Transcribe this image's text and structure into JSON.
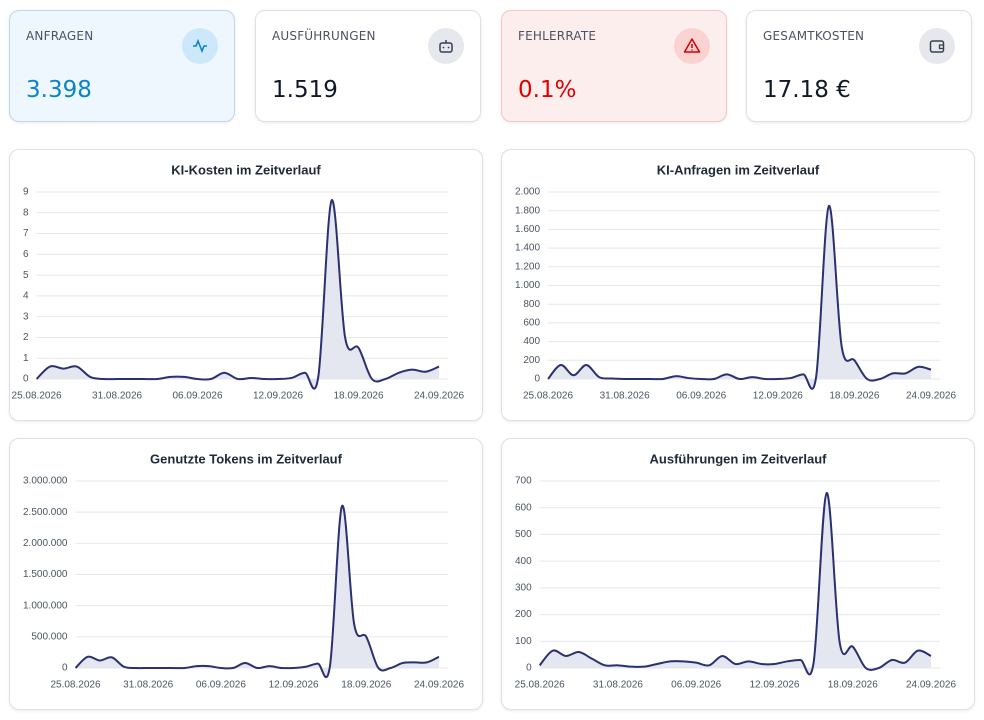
{
  "stats": [
    {
      "label": "ANFRAGEN",
      "value": "3.398"
    },
    {
      "label": "AUSFÜHRUNGEN",
      "value": "1.519"
    },
    {
      "label": "FEHLERRATE",
      "value": "0.1%"
    },
    {
      "label": "GESAMTKOSTEN",
      "value": "17.18 €"
    }
  ],
  "chart_data": [
    {
      "type": "line",
      "title": "KI-Kosten im Zeitverlauf",
      "categories": [
        "25.08.2026",
        null,
        null,
        null,
        null,
        null,
        "31.08.2026",
        null,
        null,
        null,
        null,
        null,
        "06.09.2026",
        null,
        null,
        null,
        null,
        null,
        "12.09.2026",
        null,
        null,
        null,
        null,
        null,
        "18.09.2026",
        null,
        null,
        null,
        null,
        null,
        "24.09.2026"
      ],
      "values": [
        0,
        0.6,
        0.5,
        0.6,
        0.1,
        0,
        0,
        0,
        0,
        0,
        0.1,
        0.1,
        0,
        0,
        0.3,
        0,
        0.05,
        0,
        0,
        0.05,
        0.3,
        0.1,
        8.6,
        2.0,
        1.5,
        0,
        0,
        0.3,
        0.45,
        0.35,
        0.6
      ],
      "ylim": [
        0,
        9
      ],
      "yticks": [
        0,
        1,
        2,
        3,
        4,
        5,
        6,
        7,
        8,
        9
      ],
      "grid": true,
      "color": "#2b3170",
      "area_color": "#e4e6f0"
    },
    {
      "type": "line",
      "title": "KI-Anfragen im Zeitverlauf",
      "categories": [
        "25.08.2026",
        null,
        null,
        null,
        null,
        null,
        "31.08.2026",
        null,
        null,
        null,
        null,
        null,
        "06.09.2026",
        null,
        null,
        null,
        null,
        null,
        "12.09.2026",
        null,
        null,
        null,
        null,
        null,
        "18.09.2026",
        null,
        null,
        null,
        null,
        null,
        "24.09.2026"
      ],
      "values": [
        0,
        150,
        40,
        150,
        20,
        5,
        0,
        0,
        0,
        0,
        30,
        10,
        0,
        0,
        50,
        0,
        20,
        0,
        0,
        10,
        50,
        20,
        1850,
        350,
        200,
        0,
        0,
        60,
        60,
        130,
        100
      ],
      "ylim": [
        0,
        2000
      ],
      "yticks": [
        0,
        200,
        400,
        600,
        800,
        {
          "value": 1000,
          "label": "1.000"
        },
        {
          "value": 1200,
          "label": "1.200"
        },
        {
          "value": 1400,
          "label": "1.400"
        },
        {
          "value": 1600,
          "label": "1.600"
        },
        {
          "value": 1800,
          "label": "1.800"
        },
        {
          "value": 2000,
          "label": "2.000"
        }
      ],
      "grid": true,
      "color": "#2b3170",
      "area_color": "#e4e6f0"
    },
    {
      "type": "line",
      "title": "Genutzte Tokens im Zeitverlauf",
      "categories": [
        "25.08.2026",
        null,
        null,
        null,
        null,
        null,
        "31.08.2026",
        null,
        null,
        null,
        null,
        null,
        "06.09.2026",
        null,
        null,
        null,
        null,
        null,
        "12.09.2026",
        null,
        null,
        null,
        null,
        null,
        "18.09.2026",
        null,
        null,
        null,
        null,
        null,
        "24.09.2026"
      ],
      "values": [
        0,
        180000,
        120000,
        170000,
        20000,
        0,
        0,
        0,
        0,
        0,
        30000,
        30000,
        0,
        0,
        80000,
        0,
        30000,
        0,
        0,
        20000,
        70000,
        30000,
        2600000,
        700000,
        500000,
        0,
        0,
        80000,
        90000,
        90000,
        180000
      ],
      "ylim": [
        0,
        3000000
      ],
      "yticks": [
        0,
        {
          "value": 500000,
          "label": "500.000"
        },
        {
          "value": 1000000,
          "label": "1.000.000"
        },
        {
          "value": 1500000,
          "label": "1.500.000"
        },
        {
          "value": 2000000,
          "label": "2.000.000"
        },
        {
          "value": 2500000,
          "label": "2.500.000"
        },
        {
          "value": 3000000,
          "label": "3.000.000"
        }
      ],
      "grid": true,
      "color": "#2b3170",
      "area_color": "#e4e6f0"
    },
    {
      "type": "line",
      "title": "Ausführungen im Zeitverlauf",
      "categories": [
        "25.08.2026",
        null,
        null,
        null,
        null,
        null,
        "31.08.2026",
        null,
        null,
        null,
        null,
        null,
        "06.09.2026",
        null,
        null,
        null,
        null,
        null,
        "12.09.2026",
        null,
        null,
        null,
        null,
        null,
        "18.09.2026",
        null,
        null,
        null,
        null,
        null,
        "24.09.2026"
      ],
      "values": [
        10,
        65,
        45,
        60,
        35,
        10,
        10,
        5,
        5,
        15,
        25,
        25,
        20,
        10,
        45,
        15,
        25,
        15,
        15,
        25,
        30,
        20,
        655,
        95,
        80,
        0,
        0,
        30,
        20,
        65,
        45
      ],
      "ylim": [
        0,
        700
      ],
      "yticks": [
        0,
        100,
        200,
        300,
        400,
        500,
        600,
        700
      ],
      "grid": true,
      "color": "#2b3170",
      "area_color": "#e4e6f0"
    }
  ]
}
